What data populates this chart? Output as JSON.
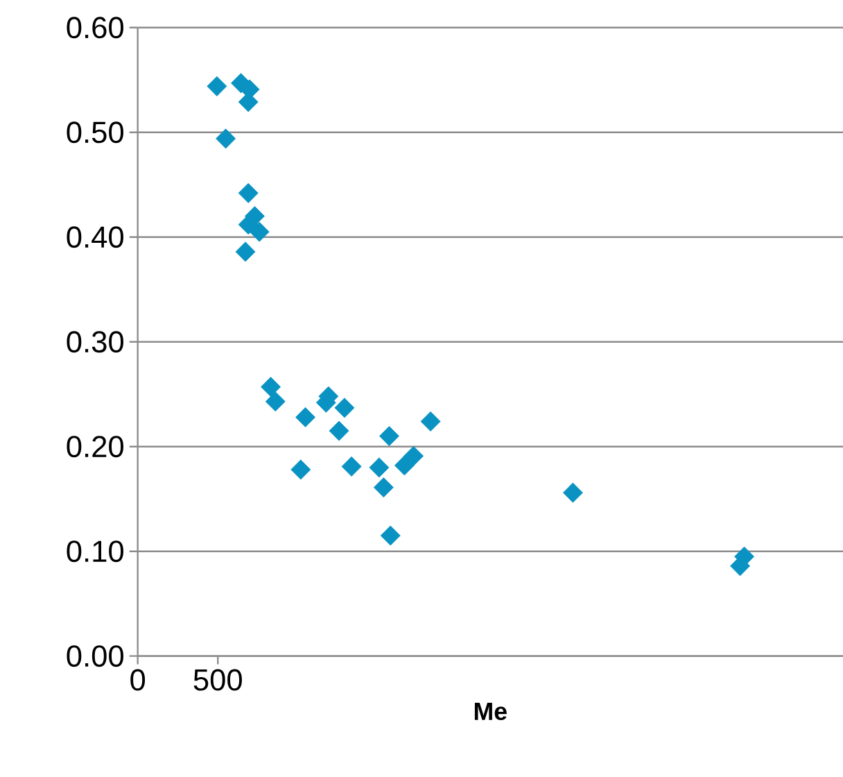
{
  "chart_data": {
    "type": "scatter",
    "xlabel": "Me",
    "x": [
      494,
      644,
      698,
      690,
      549,
      690,
      730,
      690,
      759,
      672,
      830,
      859,
      1046,
      1017,
      1190,
      1175,
      1290,
      1256,
      1334,
      1569,
      1506,
      1534,
      1664,
      1721,
      1827,
      1577,
      2715,
      3784,
      3758
    ],
    "values": [
      0.544,
      0.547,
      0.541,
      0.529,
      0.494,
      0.442,
      0.42,
      0.412,
      0.405,
      0.386,
      0.257,
      0.243,
      0.228,
      0.178,
      0.248,
      0.242,
      0.237,
      0.215,
      0.181,
      0.21,
      0.18,
      0.161,
      0.182,
      0.191,
      0.224,
      0.115,
      0.156,
      0.095,
      0.086
    ],
    "color": "#0a93c2",
    "marker": "diamond",
    "grid": "y",
    "xlim": [
      0,
      4400
    ],
    "ylim": [
      0,
      0.6
    ],
    "xticks": [
      0,
      500
    ],
    "yticks": [
      {
        "value": 0,
        "label": "0.00"
      },
      {
        "value": 0.1,
        "label": "0.10"
      },
      {
        "value": 0.2,
        "label": "0.20"
      },
      {
        "value": 0.3,
        "label": "0.30"
      },
      {
        "value": 0.4,
        "label": "0.40"
      },
      {
        "value": 0.5,
        "label": "0.50"
      },
      {
        "value": 0.6,
        "label": "0.60"
      }
    ]
  }
}
